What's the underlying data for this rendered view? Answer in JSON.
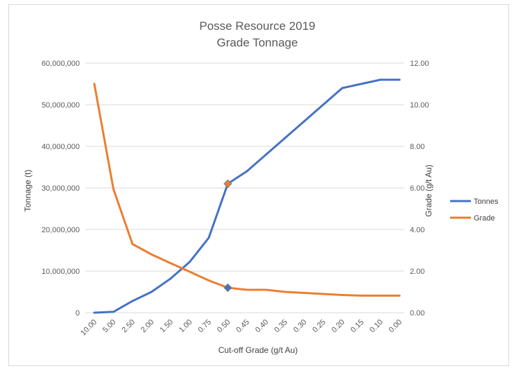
{
  "chart_data": {
    "type": "line",
    "title": [
      "Posse Resource 2019",
      "Grade Tonnage"
    ],
    "xlabel": "Cut-off Grade (g/t Au)",
    "ylabel": "Tonnage (t)",
    "y2label": "Grade (g/t Au)",
    "categories": [
      "10.00",
      "5.00",
      "2.50",
      "2.00",
      "1.50",
      "1.00",
      "0.75",
      "0.50",
      "0.45",
      "0.40",
      "0.35",
      "0.30",
      "0.25",
      "0.20",
      "0.15",
      "0.10",
      "0.00"
    ],
    "ylim": [
      0,
      60000000
    ],
    "y2lim": [
      0,
      12
    ],
    "yticks": [
      0,
      10000000,
      20000000,
      30000000,
      40000000,
      50000000,
      60000000
    ],
    "ytick_labels": [
      "0",
      "10,000,000",
      "20,000,000",
      "30,000,000",
      "40,000,000",
      "50,000,000",
      "60,000,000"
    ],
    "y2ticks": [
      0,
      2,
      4,
      6,
      8,
      10,
      12
    ],
    "y2tick_labels": [
      "0.00",
      "2.00",
      "4.00",
      "6.00",
      "8.00",
      "10.00",
      "12.00"
    ],
    "series": [
      {
        "name": "Tonnes",
        "axis": "left",
        "color": "#4472C4",
        "values": [
          0,
          200000,
          2800000,
          5000000,
          8200000,
          12200000,
          18000000,
          31000000,
          34000000,
          38000000,
          42000000,
          46000000,
          50000000,
          54000000,
          55000000,
          56000000,
          56000000
        ],
        "highlight_index": 7
      },
      {
        "name": "Grade",
        "axis": "right",
        "color": "#ED7D31",
        "values": [
          11.0,
          5.95,
          3.3,
          2.8,
          2.38,
          1.97,
          1.55,
          1.2,
          1.1,
          1.1,
          1.0,
          0.95,
          0.9,
          0.85,
          0.82,
          0.82,
          0.82
        ],
        "highlight_index": 7
      }
    ],
    "grid": true,
    "legend": "right"
  }
}
